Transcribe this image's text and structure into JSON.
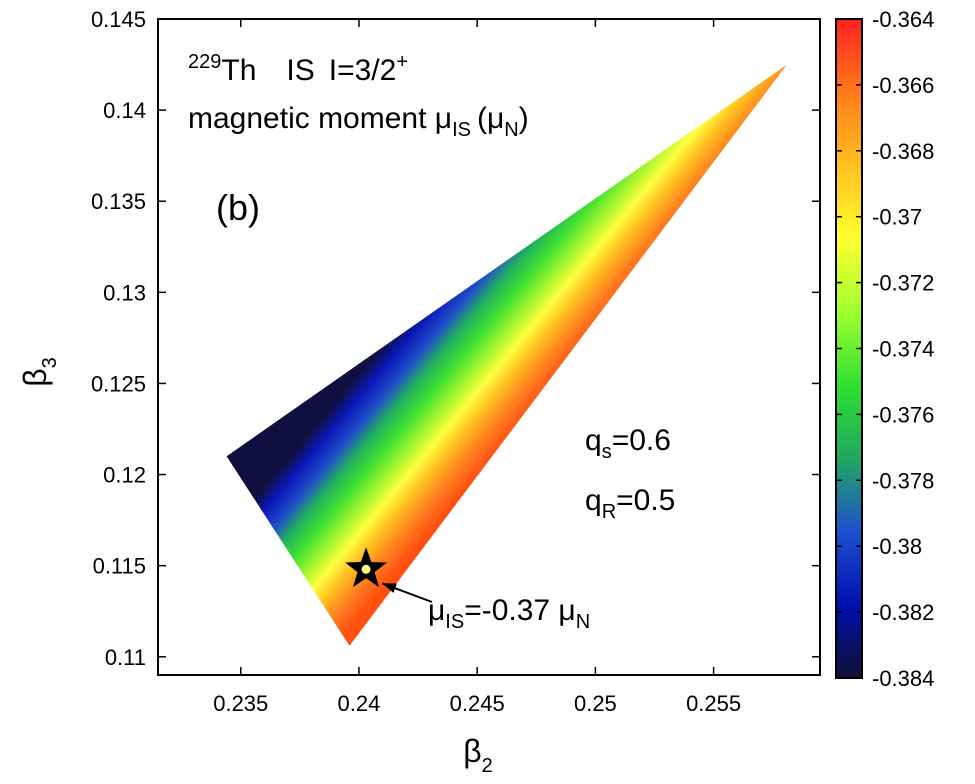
{
  "chart_data": {
    "type": "heatmap",
    "xlabel": "β",
    "xlabel_sub": "2",
    "ylabel": "β",
    "ylabel_sub": "3",
    "xlim": [
      0.2315,
      0.2595
    ],
    "ylim": [
      0.109,
      0.145
    ],
    "x_ticks": [
      0.235,
      0.24,
      0.245,
      0.25,
      0.255
    ],
    "x_tick_labels": [
      "0.235",
      "0.24",
      "0.245",
      "0.25",
      "0.255"
    ],
    "y_ticks": [
      0.11,
      0.115,
      0.12,
      0.125,
      0.13,
      0.135,
      0.14,
      0.145
    ],
    "y_tick_labels": [
      "0.11",
      "0.115",
      "0.12",
      "0.125",
      "0.13",
      "0.135",
      "0.14",
      "0.145"
    ],
    "region_vertices": [
      {
        "beta2": 0.2344,
        "beta3": 0.121
      },
      {
        "beta2": 0.2581,
        "beta3": 0.1425
      },
      {
        "beta2": 0.2396,
        "beta3": 0.1106
      }
    ],
    "colorbar": {
      "min": -0.384,
      "max": -0.364,
      "ticks": [
        -0.364,
        -0.366,
        -0.368,
        -0.37,
        -0.372,
        -0.374,
        -0.376,
        -0.378,
        -0.38,
        -0.382,
        -0.384
      ],
      "tick_labels": [
        "-0.364",
        "-0.366",
        "-0.368",
        "-0.37",
        "-0.372",
        "-0.374",
        "-0.376",
        "-0.378",
        "-0.38",
        "-0.382",
        "-0.384"
      ],
      "colors": [
        "#ff2020",
        "#ff7a1a",
        "#ffc020",
        "#ffff30",
        "#a0ff30",
        "#30e030",
        "#20a860",
        "#1f50d0",
        "#0010b0",
        "#101030"
      ]
    },
    "title_parts": {
      "isotope_mass": "229",
      "isotope_symbol": "Th",
      "state": "IS",
      "spin_text": "I=3/2",
      "parity": "+",
      "quantity": "magnetic moment μ",
      "quantity_sub": "IS",
      "unit": "(μ",
      "unit_sub": "N",
      "unit_close": ")"
    },
    "panel_label": "(b)",
    "params": [
      {
        "symbol": "q",
        "sub": "s",
        "value": "=0.6"
      },
      {
        "symbol": "q",
        "sub": "R",
        "value": "=0.5"
      }
    ],
    "marker": {
      "beta2": 0.2403,
      "beta3": 0.1148,
      "symbol": "star",
      "label_main": "μ",
      "label_sub": "IS",
      "label_value": "=-0.37 μ",
      "label_unit_sub": "N"
    }
  }
}
